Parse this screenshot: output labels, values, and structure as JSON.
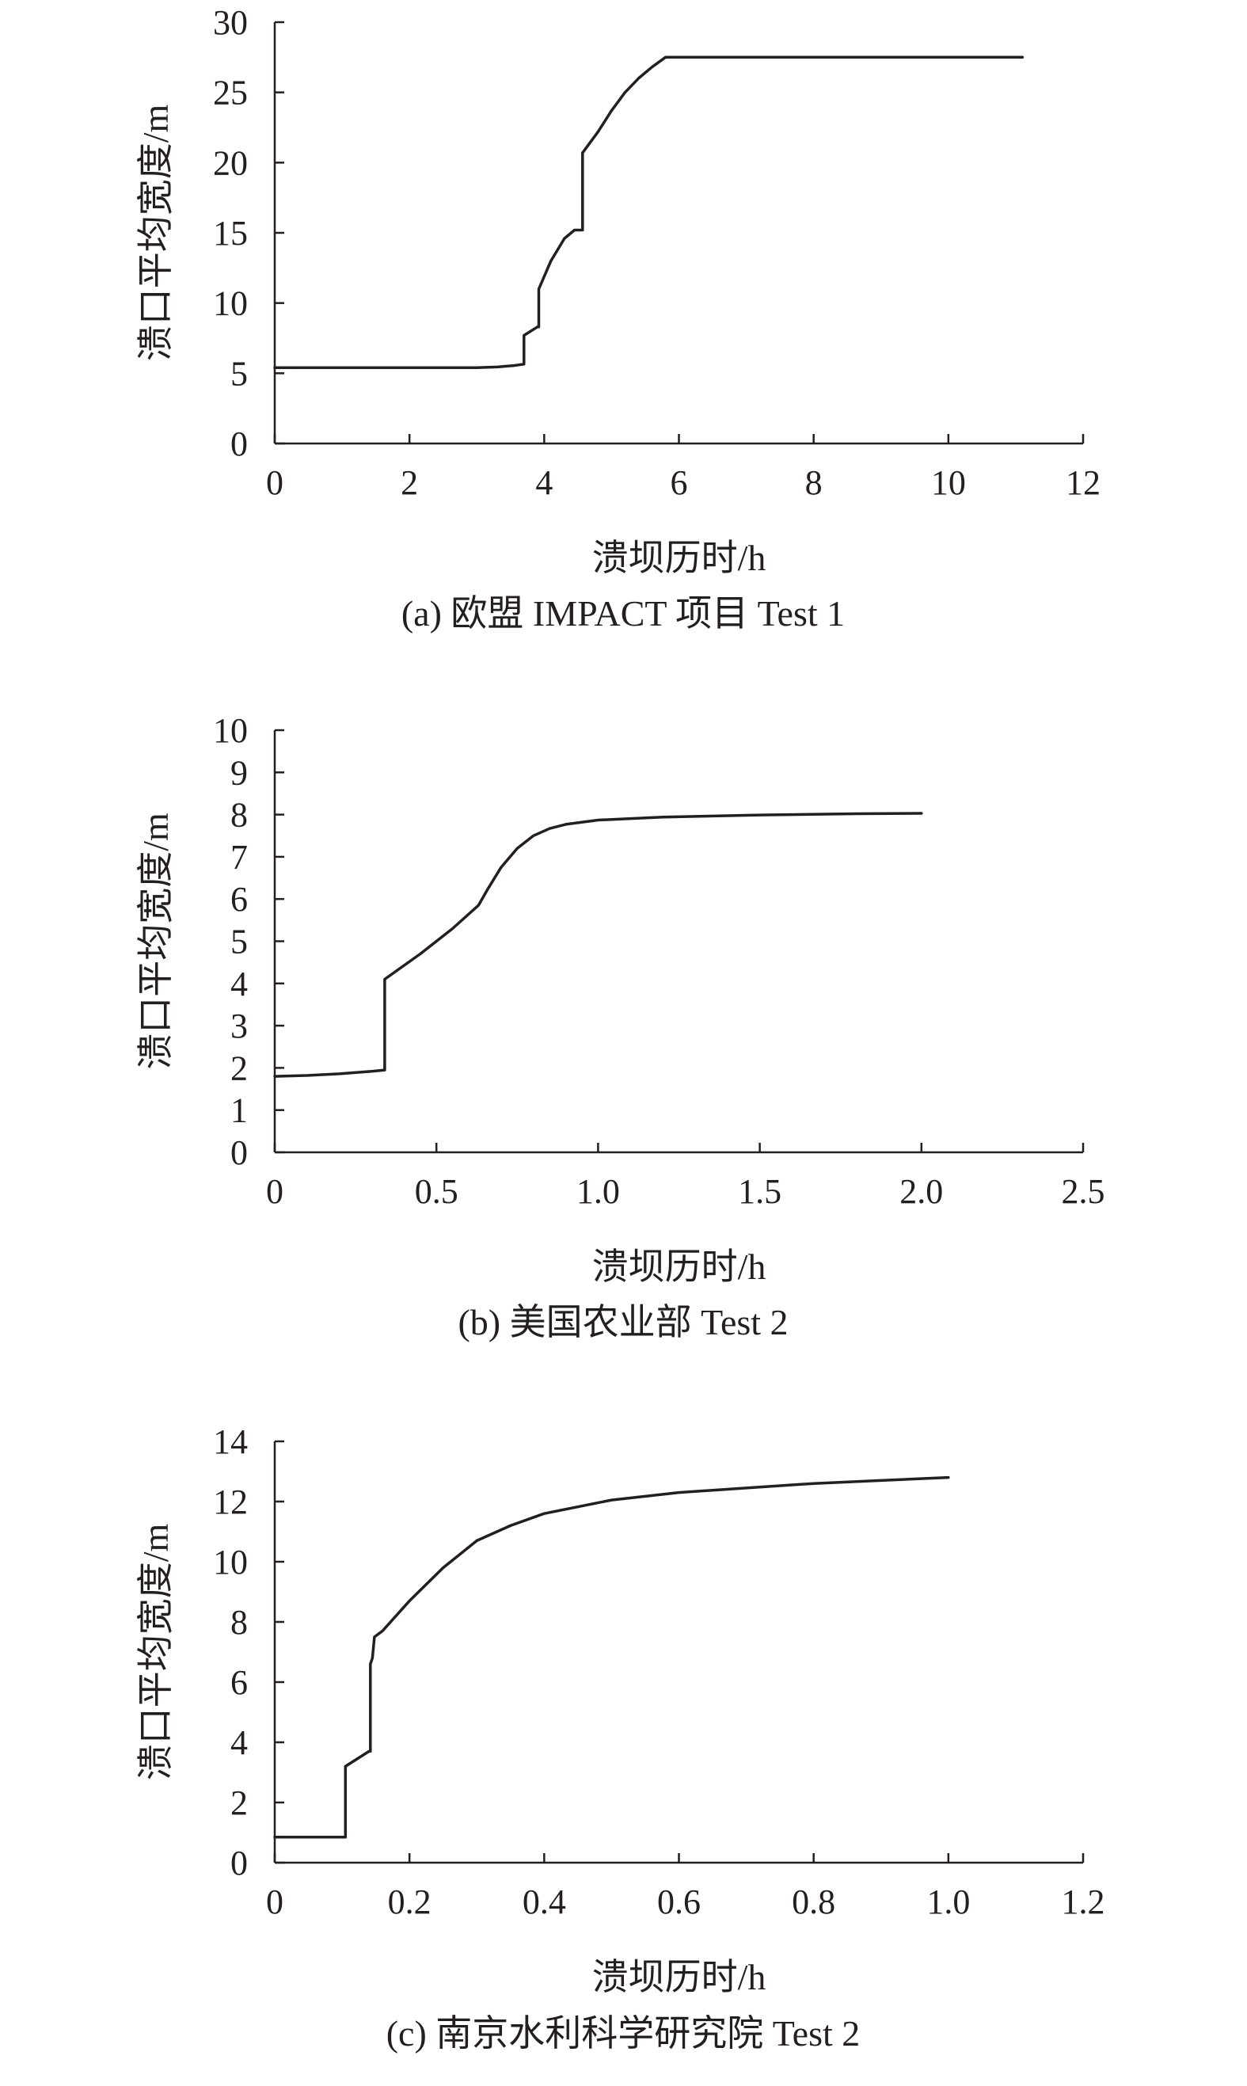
{
  "chart_data": [
    {
      "type": "line",
      "caption": "(a) 欧盟 IMPACT 项目 Test 1",
      "xlabel": "溃坝历时/h",
      "ylabel": "溃口平均宽度/m",
      "xlim": [
        0,
        12
      ],
      "ylim": [
        0,
        30
      ],
      "xticks": [
        0,
        2,
        4,
        6,
        8,
        10,
        12
      ],
      "yticks": [
        0,
        5,
        10,
        15,
        20,
        25,
        30
      ],
      "xtick_labels": [
        "0",
        "2",
        "4",
        "6",
        "8",
        "10",
        "12"
      ],
      "ytick_labels": [
        "0",
        "5",
        "10",
        "15",
        "20",
        "25",
        "30"
      ],
      "grid": false,
      "series": [
        {
          "x": [
            0,
            3.0,
            3.3,
            3.55,
            3.7,
            3.7,
            3.9,
            3.92,
            3.92,
            4.1,
            4.3,
            4.45,
            4.55,
            4.57,
            4.57,
            4.8,
            5.0,
            5.2,
            5.4,
            5.6,
            5.8,
            11.1
          ],
          "y": [
            5.4,
            5.4,
            5.45,
            5.55,
            5.65,
            7.7,
            8.3,
            8.3,
            11.0,
            13.0,
            14.6,
            15.2,
            15.2,
            15.2,
            20.7,
            22.2,
            23.7,
            25.0,
            26.0,
            26.8,
            27.5,
            27.5
          ]
        }
      ]
    },
    {
      "type": "line",
      "caption": "(b) 美国农业部 Test 2",
      "xlabel": "溃坝历时/h",
      "ylabel": "溃口平均宽度/m",
      "xlim": [
        0,
        2.5
      ],
      "ylim": [
        0,
        10
      ],
      "xticks": [
        0,
        0.5,
        1.0,
        1.5,
        2.0,
        2.5
      ],
      "yticks": [
        0,
        1,
        2,
        3,
        4,
        5,
        6,
        7,
        8,
        9,
        10
      ],
      "xtick_labels": [
        "0",
        "0.5",
        "1.0",
        "1.5",
        "2.0",
        "2.5"
      ],
      "ytick_labels": [
        "0",
        "1",
        "2",
        "3",
        "4",
        "5",
        "6",
        "7",
        "8",
        "9",
        "10"
      ],
      "grid": false,
      "series": [
        {
          "x": [
            0,
            0.1,
            0.2,
            0.3,
            0.34,
            0.34,
            0.45,
            0.55,
            0.63,
            0.66,
            0.7,
            0.75,
            0.8,
            0.85,
            0.9,
            1.0,
            1.2,
            1.5,
            1.8,
            2.0
          ],
          "y": [
            1.8,
            1.82,
            1.86,
            1.92,
            1.95,
            4.1,
            4.7,
            5.3,
            5.85,
            6.25,
            6.75,
            7.2,
            7.5,
            7.67,
            7.77,
            7.87,
            7.94,
            7.99,
            8.02,
            8.03
          ]
        }
      ]
    },
    {
      "type": "line",
      "caption": "(c) 南京水利科学研究院 Test 2",
      "xlabel": "溃坝历时/h",
      "ylabel": "溃口平均宽度/m",
      "xlim": [
        0,
        1.2
      ],
      "ylim": [
        0,
        14
      ],
      "xticks": [
        0,
        0.2,
        0.4,
        0.6,
        0.8,
        1.0,
        1.2
      ],
      "yticks": [
        0,
        2,
        4,
        6,
        8,
        10,
        12,
        14
      ],
      "xtick_labels": [
        "0",
        "0.2",
        "0.4",
        "0.6",
        "0.8",
        "1.0",
        "1.2"
      ],
      "ytick_labels": [
        "0",
        "2",
        "4",
        "6",
        "8",
        "10",
        "12",
        "14"
      ],
      "grid": false,
      "series": [
        {
          "x": [
            0,
            0.103,
            0.105,
            0.105,
            0.14,
            0.142,
            0.142,
            0.145,
            0.148,
            0.16,
            0.2,
            0.25,
            0.3,
            0.35,
            0.4,
            0.5,
            0.6,
            0.7,
            0.8,
            0.9,
            1.0
          ],
          "y": [
            0.85,
            0.85,
            0.85,
            3.2,
            3.7,
            3.7,
            6.6,
            6.8,
            7.5,
            7.7,
            8.7,
            9.8,
            10.7,
            11.2,
            11.6,
            12.05,
            12.3,
            12.45,
            12.6,
            12.7,
            12.8
          ]
        }
      ]
    }
  ]
}
